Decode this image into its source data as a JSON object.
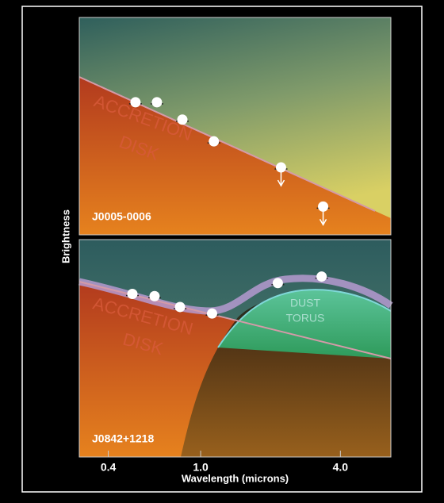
{
  "chart_data": [
    {
      "type": "scatter",
      "title": "J0005-0006",
      "log_x": true,
      "xlim": [
        0.3,
        6.6
      ],
      "ylim": [
        0,
        10
      ],
      "ylabel": "Brightness",
      "color": "#ffffff",
      "annotations": [
        "ACCRETION",
        "DISK"
      ],
      "x": [
        0.524,
        0.648,
        0.834,
        1.14,
        2.22,
        3.37
      ],
      "values": [
        6.1,
        6.1,
        5.3,
        4.3,
        3.1,
        1.3
      ],
      "upper_limit": [
        false,
        false,
        false,
        false,
        true,
        true
      ]
    },
    {
      "type": "scatter",
      "title": "J0842+1218",
      "log_x": true,
      "xlim": [
        0.3,
        6.6
      ],
      "ylim": [
        0,
        10
      ],
      "xlabel": "Wavelength (microns)",
      "color": "#ffffff",
      "annotations": [
        "ACCRETION",
        "DISK",
        "DUST",
        "TORUS"
      ],
      "xticks": [
        0.4,
        {
          "value": 1,
          "label": "1.0"
        },
        {
          "value": 4,
          "label": "4.0"
        }
      ],
      "x": [
        0.508,
        0.633,
        0.815,
        1.12,
        2.15,
        3.32
      ],
      "values": [
        7.5,
        7.4,
        6.9,
        6.6,
        8.0,
        8.3
      ],
      "upper_limit": [
        false,
        false,
        false,
        false,
        false,
        false
      ]
    }
  ]
}
